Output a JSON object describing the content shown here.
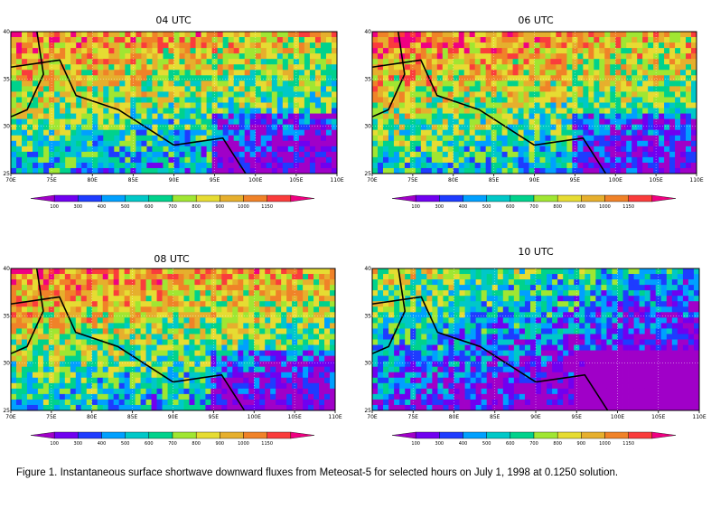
{
  "caption": "Figure 1. Instantaneous surface shortwave downward fluxes from Meteosat-5 for selected hours on July 1, 1998 at 0.1250 solution.",
  "chart_data": [
    {
      "type": "heatmap",
      "title": "04 UTC",
      "x_ticks": [
        "70E",
        "75E",
        "80E",
        "85E",
        "90E",
        "95E",
        "100E",
        "105E",
        "110E"
      ],
      "y_ticks": [
        "25",
        "30",
        "35",
        "40"
      ],
      "xlim": [
        70,
        110
      ],
      "ylim": [
        25,
        40
      ],
      "colorbar_ticks": [
        "100",
        "300",
        "400",
        "500",
        "600",
        "700",
        "800",
        "900",
        "1000",
        "1150"
      ]
    },
    {
      "type": "heatmap",
      "title": "06 UTC",
      "x_ticks": [
        "70E",
        "75E",
        "80E",
        "85E",
        "90E",
        "95E",
        "100E",
        "105E",
        "110E"
      ],
      "y_ticks": [
        "25",
        "30",
        "35",
        "40"
      ],
      "xlim": [
        70,
        110
      ],
      "ylim": [
        25,
        40
      ],
      "colorbar_ticks": [
        "100",
        "300",
        "400",
        "500",
        "600",
        "700",
        "800",
        "900",
        "1000",
        "1150"
      ]
    },
    {
      "type": "heatmap",
      "title": "08 UTC",
      "x_ticks": [
        "70E",
        "75E",
        "80E",
        "85E",
        "90E",
        "95E",
        "100E",
        "105E",
        "110E"
      ],
      "y_ticks": [
        "25",
        "30",
        "35",
        "40"
      ],
      "xlim": [
        70,
        110
      ],
      "ylim": [
        25,
        40
      ],
      "colorbar_ticks": [
        "100",
        "300",
        "400",
        "500",
        "600",
        "700",
        "800",
        "900",
        "1000",
        "1150"
      ]
    },
    {
      "type": "heatmap",
      "title": "10 UTC",
      "x_ticks": [
        "70E",
        "75E",
        "80E",
        "85E",
        "90E",
        "95E",
        "100E",
        "105E",
        "110E"
      ],
      "y_ticks": [
        "25",
        "30",
        "35",
        "40"
      ],
      "xlim": [
        70,
        110
      ],
      "ylim": [
        25,
        40
      ],
      "colorbar_ticks": [
        "100",
        "300",
        "400",
        "500",
        "600",
        "700",
        "800",
        "900",
        "1000",
        "1150"
      ]
    }
  ],
  "colorscale": [
    "#a000c8",
    "#7000f0",
    "#1e3cff",
    "#00a0ff",
    "#00c8c8",
    "#00d28c",
    "#a0e632",
    "#e6dc32",
    "#e6af2d",
    "#f08228",
    "#fa3c3c",
    "#f00082"
  ]
}
